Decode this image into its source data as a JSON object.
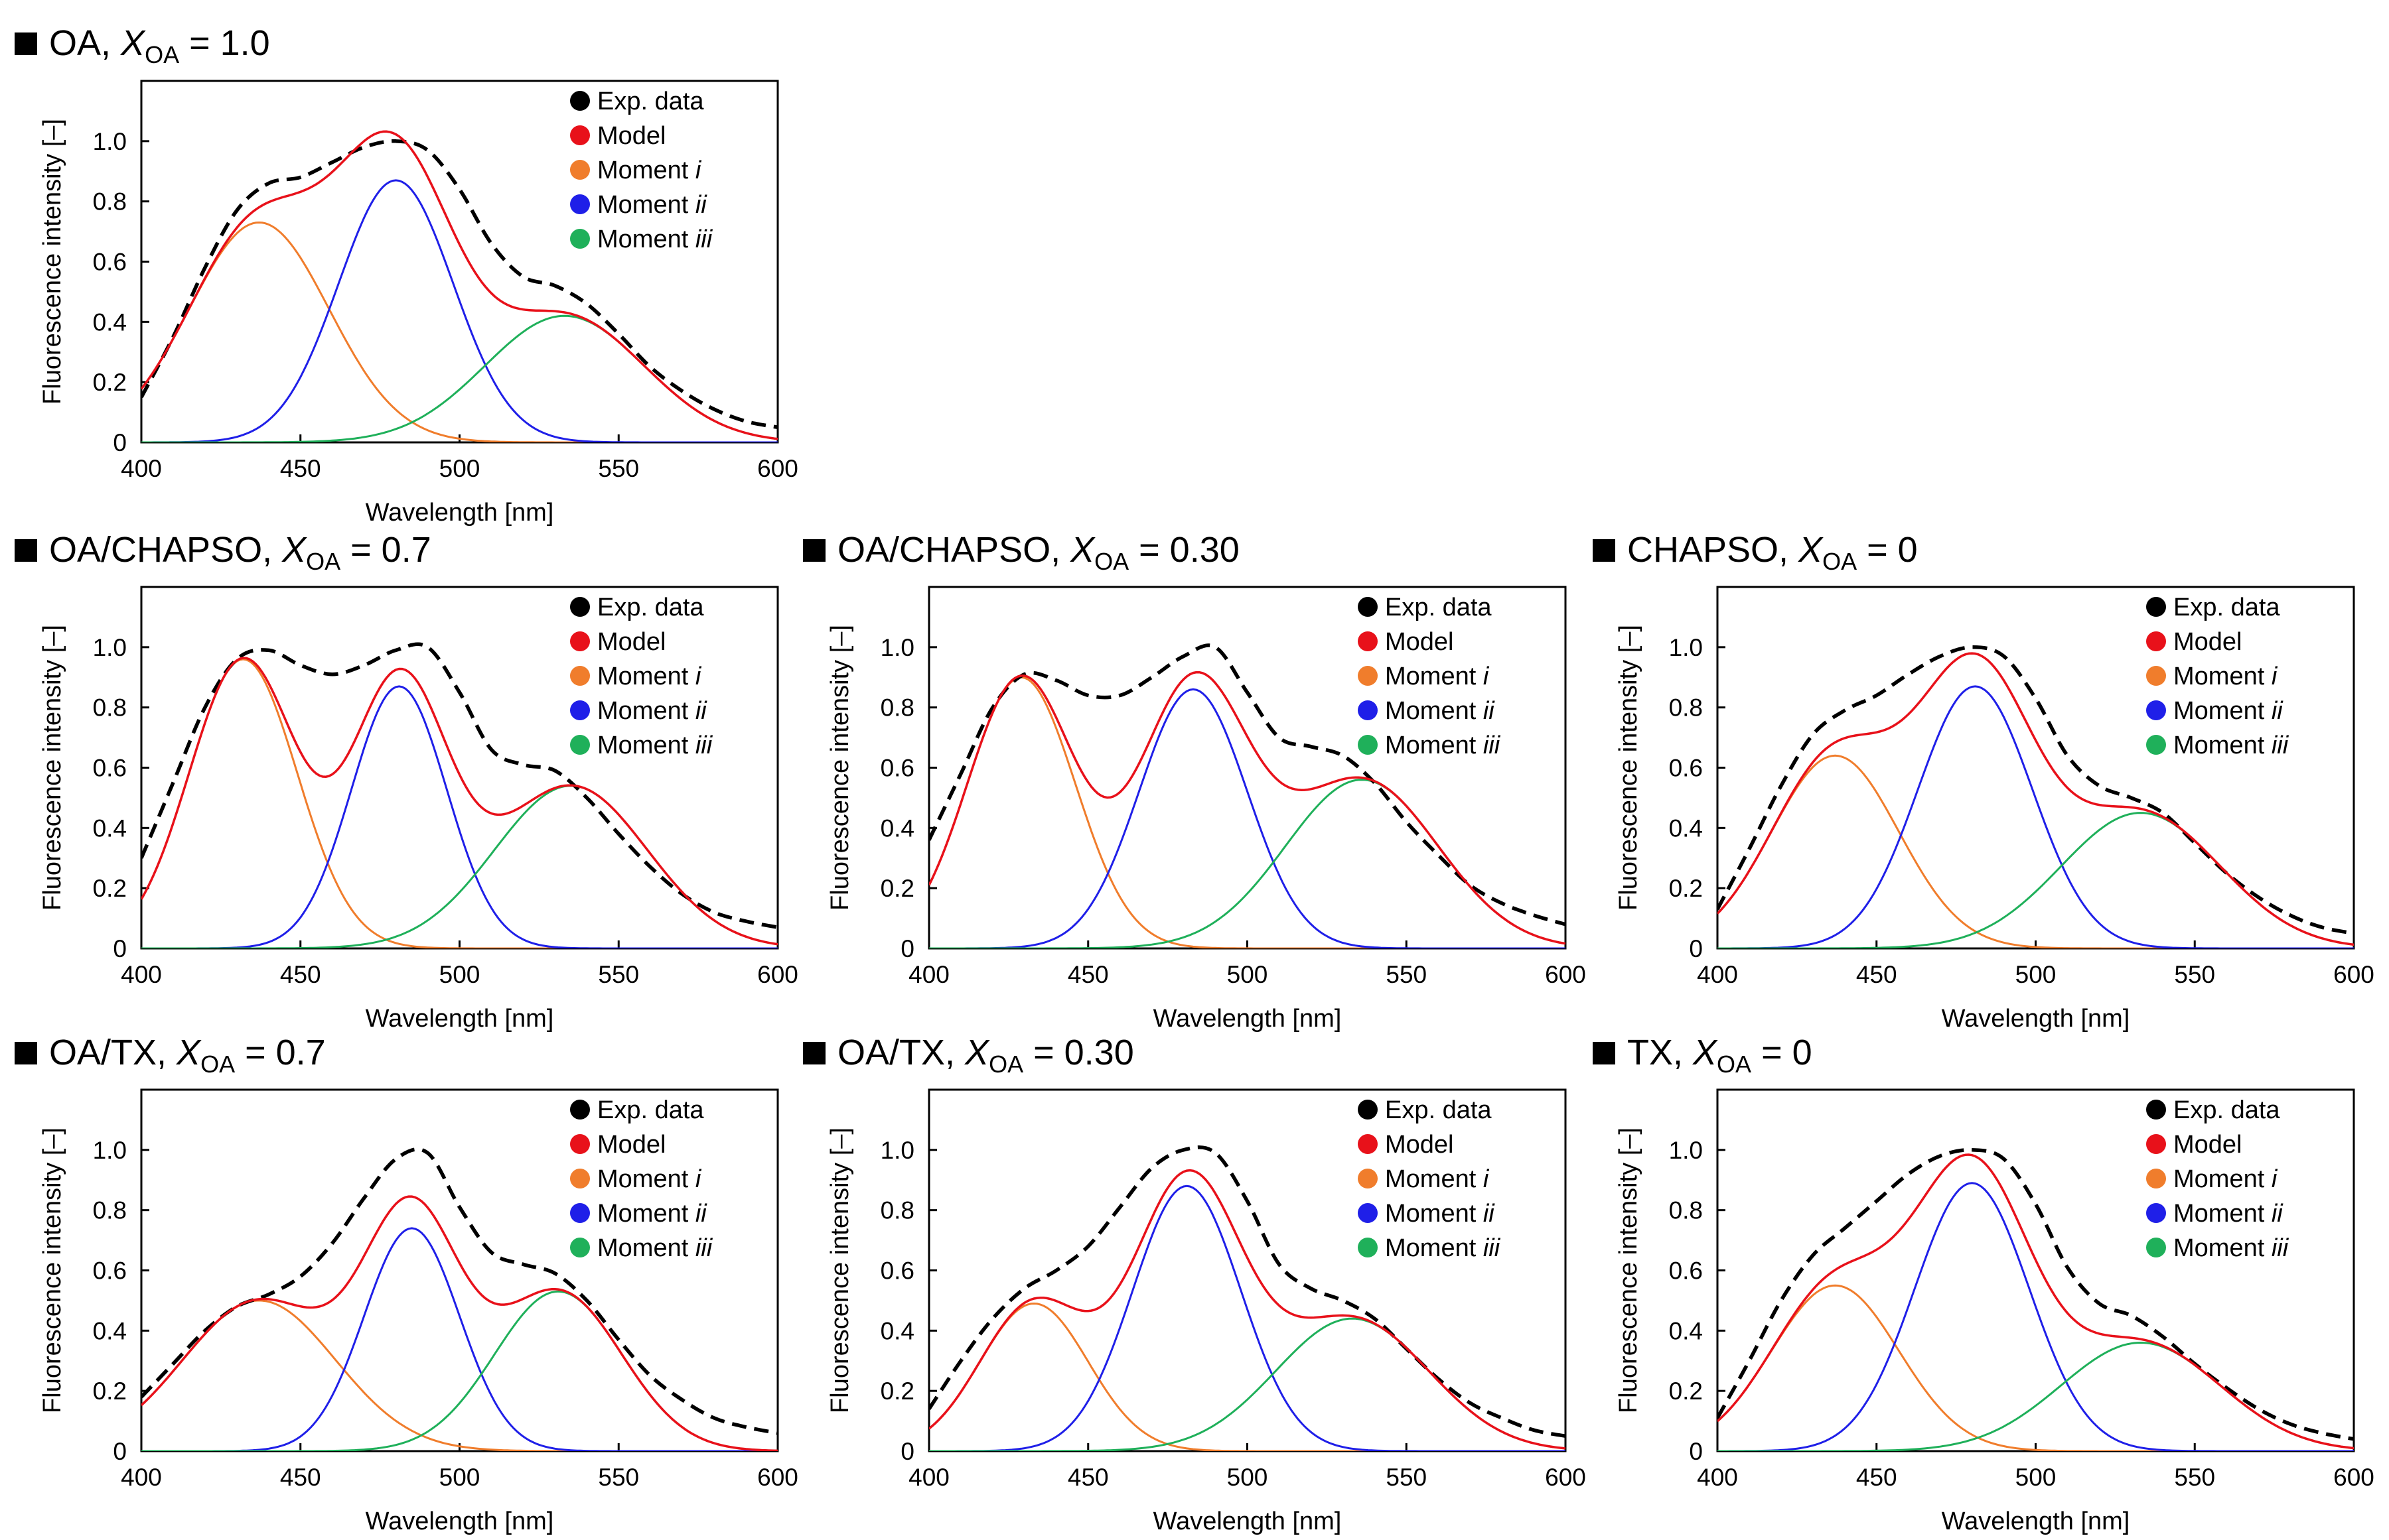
{
  "legend": [
    {
      "key": "exp",
      "label": "Exp. data",
      "color": "#000000",
      "dash": true
    },
    {
      "key": "model",
      "label": "Model",
      "color": "#e8111a"
    },
    {
      "key": "m1",
      "label": "Moment ",
      "italic": "i",
      "color": "#f07d2c"
    },
    {
      "key": "m2",
      "label": "Moment ",
      "italic": "ii",
      "color": "#1f1fe8"
    },
    {
      "key": "m3",
      "label": "Moment ",
      "italic": "iii",
      "color": "#1fb05a"
    }
  ],
  "chart_data": [
    {
      "id": "oa-1.0",
      "type": "line",
      "title": {
        "prefix": "OA, ",
        "sym": "X",
        "sub": "OA",
        "suffix": " = 1.0"
      },
      "xlabel": "Wavelength [nm]",
      "ylabel": "Fluorescence intensity [–]",
      "xlim": [
        400,
        600
      ],
      "ylim": [
        0,
        1.2
      ],
      "xticks": [
        "400",
        "450",
        "500",
        "550",
        "600"
      ],
      "yticks": [
        "0",
        "0.2",
        "0.4",
        "0.6",
        "0.8",
        "1.0"
      ],
      "moments": [
        {
          "key": "m1",
          "amp": 0.73,
          "center": 437,
          "sigma": 22
        },
        {
          "key": "m2",
          "amp": 0.87,
          "center": 480,
          "sigma": 18
        },
        {
          "key": "m3",
          "amp": 0.42,
          "center": 533,
          "sigma": 25
        }
      ],
      "exp_data": {
        "x": [
          400,
          410,
          420,
          430,
          440,
          450,
          460,
          470,
          480,
          490,
          500,
          510,
          520,
          530,
          540,
          550,
          560,
          570,
          580,
          590,
          600
        ],
        "y": [
          0.15,
          0.35,
          0.58,
          0.77,
          0.86,
          0.88,
          0.93,
          0.98,
          1.0,
          0.97,
          0.84,
          0.66,
          0.55,
          0.52,
          0.46,
          0.36,
          0.25,
          0.17,
          0.11,
          0.07,
          0.05
        ]
      }
    },
    {
      "id": "oa-chapso-0.7",
      "type": "line",
      "title": {
        "prefix": "OA/CHAPSO, ",
        "sym": "X",
        "sub": "OA",
        "suffix": " = 0.7"
      },
      "xlabel": "Wavelength [nm]",
      "ylabel": "Fluorescence intensity [–]",
      "xlim": [
        400,
        600
      ],
      "ylim": [
        0,
        1.2
      ],
      "xticks": [
        "400",
        "450",
        "500",
        "550",
        "600"
      ],
      "yticks": [
        "0",
        "0.2",
        "0.4",
        "0.6",
        "0.8",
        "1.0"
      ],
      "moments": [
        {
          "key": "m1",
          "amp": 0.96,
          "center": 432,
          "sigma": 17
        },
        {
          "key": "m2",
          "amp": 0.87,
          "center": 481,
          "sigma": 15
        },
        {
          "key": "m3",
          "amp": 0.54,
          "center": 535,
          "sigma": 24
        }
      ],
      "exp_data": {
        "x": [
          400,
          410,
          420,
          430,
          440,
          450,
          460,
          470,
          480,
          490,
          500,
          510,
          520,
          530,
          540,
          550,
          560,
          570,
          580,
          590,
          600
        ],
        "y": [
          0.3,
          0.55,
          0.8,
          0.96,
          0.99,
          0.94,
          0.91,
          0.94,
          0.99,
          1.0,
          0.85,
          0.66,
          0.61,
          0.59,
          0.5,
          0.38,
          0.27,
          0.18,
          0.12,
          0.09,
          0.07
        ]
      }
    },
    {
      "id": "oa-chapso-0.30",
      "type": "line",
      "title": {
        "prefix": "OA/CHAPSO, ",
        "sym": "X",
        "sub": "OA",
        "suffix": " = 0.30"
      },
      "xlabel": "Wavelength [nm]",
      "ylabel": "Fluorescence intensity [–]",
      "xlim": [
        400,
        600
      ],
      "ylim": [
        0,
        1.2
      ],
      "xticks": [
        "400",
        "450",
        "500",
        "550",
        "600"
      ],
      "yticks": [
        "0",
        "0.2",
        "0.4",
        "0.6",
        "0.8",
        "1.0"
      ],
      "moments": [
        {
          "key": "m1",
          "amp": 0.9,
          "center": 429,
          "sigma": 17
        },
        {
          "key": "m2",
          "amp": 0.86,
          "center": 483,
          "sigma": 17
        },
        {
          "key": "m3",
          "amp": 0.56,
          "center": 536,
          "sigma": 24
        }
      ],
      "exp_data": {
        "x": [
          400,
          410,
          420,
          430,
          440,
          450,
          460,
          470,
          480,
          490,
          500,
          510,
          520,
          530,
          540,
          550,
          560,
          570,
          580,
          590,
          600
        ],
        "y": [
          0.36,
          0.58,
          0.8,
          0.91,
          0.89,
          0.84,
          0.84,
          0.9,
          0.97,
          1.0,
          0.85,
          0.7,
          0.67,
          0.64,
          0.55,
          0.42,
          0.31,
          0.21,
          0.15,
          0.11,
          0.08
        ]
      }
    },
    {
      "id": "chapso-0",
      "type": "line",
      "title": {
        "prefix": "CHAPSO, ",
        "sym": "X",
        "sub": "OA",
        "suffix": " = 0"
      },
      "xlabel": "Wavelength [nm]",
      "ylabel": "Fluorescence intensity [–]",
      "xlim": [
        400,
        600
      ],
      "ylim": [
        0,
        1.2
      ],
      "xticks": [
        "400",
        "450",
        "500",
        "550",
        "600"
      ],
      "yticks": [
        "0",
        "0.2",
        "0.4",
        "0.6",
        "0.8",
        "1.0"
      ],
      "moments": [
        {
          "key": "m1",
          "amp": 0.64,
          "center": 437,
          "sigma": 20
        },
        {
          "key": "m2",
          "amp": 0.87,
          "center": 481,
          "sigma": 18
        },
        {
          "key": "m3",
          "amp": 0.45,
          "center": 533,
          "sigma": 25
        }
      ],
      "exp_data": {
        "x": [
          400,
          410,
          420,
          430,
          440,
          450,
          460,
          470,
          480,
          490,
          500,
          510,
          520,
          530,
          540,
          550,
          560,
          570,
          580,
          590,
          600
        ],
        "y": [
          0.13,
          0.33,
          0.54,
          0.71,
          0.79,
          0.84,
          0.91,
          0.97,
          1.0,
          0.97,
          0.83,
          0.64,
          0.54,
          0.5,
          0.45,
          0.35,
          0.25,
          0.17,
          0.11,
          0.07,
          0.05
        ]
      }
    },
    {
      "id": "oa-tx-0.7",
      "type": "line",
      "title": {
        "prefix": "OA/TX, ",
        "sym": "X",
        "sub": "OA",
        "suffix": " = 0.7"
      },
      "xlabel": "Wavelength [nm]",
      "ylabel": "Fluorescence intensity [–]",
      "xlim": [
        400,
        600
      ],
      "ylim": [
        0,
        1.2
      ],
      "xticks": [
        "400",
        "450",
        "500",
        "550",
        "600"
      ],
      "yticks": [
        "0",
        "0.2",
        "0.4",
        "0.6",
        "0.8",
        "1.0"
      ],
      "moments": [
        {
          "key": "m1",
          "amp": 0.5,
          "center": 437,
          "sigma": 24
        },
        {
          "key": "m2",
          "amp": 0.74,
          "center": 485,
          "sigma": 15
        },
        {
          "key": "m3",
          "amp": 0.53,
          "center": 531,
          "sigma": 20
        }
      ],
      "exp_data": {
        "x": [
          400,
          410,
          420,
          430,
          440,
          450,
          460,
          470,
          480,
          490,
          500,
          510,
          520,
          530,
          540,
          550,
          560,
          570,
          580,
          590,
          600
        ],
        "y": [
          0.18,
          0.29,
          0.4,
          0.48,
          0.52,
          0.58,
          0.69,
          0.84,
          0.97,
          0.99,
          0.81,
          0.66,
          0.62,
          0.59,
          0.5,
          0.37,
          0.25,
          0.17,
          0.11,
          0.08,
          0.06
        ]
      }
    },
    {
      "id": "oa-tx-0.30",
      "type": "line",
      "title": {
        "prefix": "OA/TX, ",
        "sym": "X",
        "sub": "OA",
        "suffix": " = 0.30"
      },
      "xlabel": "Wavelength [nm]",
      "ylabel": "Fluorescence intensity [–]",
      "xlim": [
        400,
        600
      ],
      "ylim": [
        0,
        1.2
      ],
      "xticks": [
        "400",
        "450",
        "500",
        "550",
        "600"
      ],
      "yticks": [
        "0",
        "0.2",
        "0.4",
        "0.6",
        "0.8",
        "1.0"
      ],
      "moments": [
        {
          "key": "m1",
          "amp": 0.49,
          "center": 433,
          "sigma": 17
        },
        {
          "key": "m2",
          "amp": 0.88,
          "center": 481,
          "sigma": 17
        },
        {
          "key": "m3",
          "amp": 0.44,
          "center": 533,
          "sigma": 24
        }
      ],
      "exp_data": {
        "x": [
          400,
          410,
          420,
          430,
          440,
          450,
          460,
          470,
          480,
          490,
          500,
          510,
          520,
          530,
          540,
          550,
          560,
          570,
          580,
          590,
          600
        ],
        "y": [
          0.14,
          0.3,
          0.44,
          0.54,
          0.6,
          0.68,
          0.81,
          0.94,
          1.0,
          0.99,
          0.83,
          0.62,
          0.54,
          0.5,
          0.44,
          0.34,
          0.24,
          0.16,
          0.11,
          0.07,
          0.05
        ]
      }
    },
    {
      "id": "tx-0",
      "type": "line",
      "title": {
        "prefix": "TX, ",
        "sym": "X",
        "sub": "OA",
        "suffix": " = 0"
      },
      "xlabel": "Wavelength [nm]",
      "ylabel": "Fluorescence intensity [–]",
      "xlim": [
        400,
        600
      ],
      "ylim": [
        0,
        1.2
      ],
      "xticks": [
        "400",
        "450",
        "500",
        "550",
        "600"
      ],
      "yticks": [
        "0",
        "0.2",
        "0.4",
        "0.6",
        "0.8",
        "1.0"
      ],
      "moments": [
        {
          "key": "m1",
          "amp": 0.55,
          "center": 437,
          "sigma": 20
        },
        {
          "key": "m2",
          "amp": 0.89,
          "center": 480,
          "sigma": 18
        },
        {
          "key": "m3",
          "amp": 0.36,
          "center": 533,
          "sigma": 25
        }
      ],
      "exp_data": {
        "x": [
          400,
          410,
          420,
          430,
          440,
          450,
          460,
          470,
          480,
          490,
          500,
          510,
          520,
          530,
          540,
          550,
          560,
          570,
          580,
          590,
          600
        ],
        "y": [
          0.11,
          0.3,
          0.5,
          0.65,
          0.74,
          0.83,
          0.92,
          0.98,
          1.0,
          0.97,
          0.82,
          0.61,
          0.49,
          0.45,
          0.38,
          0.29,
          0.21,
          0.14,
          0.09,
          0.06,
          0.04
        ]
      }
    }
  ]
}
